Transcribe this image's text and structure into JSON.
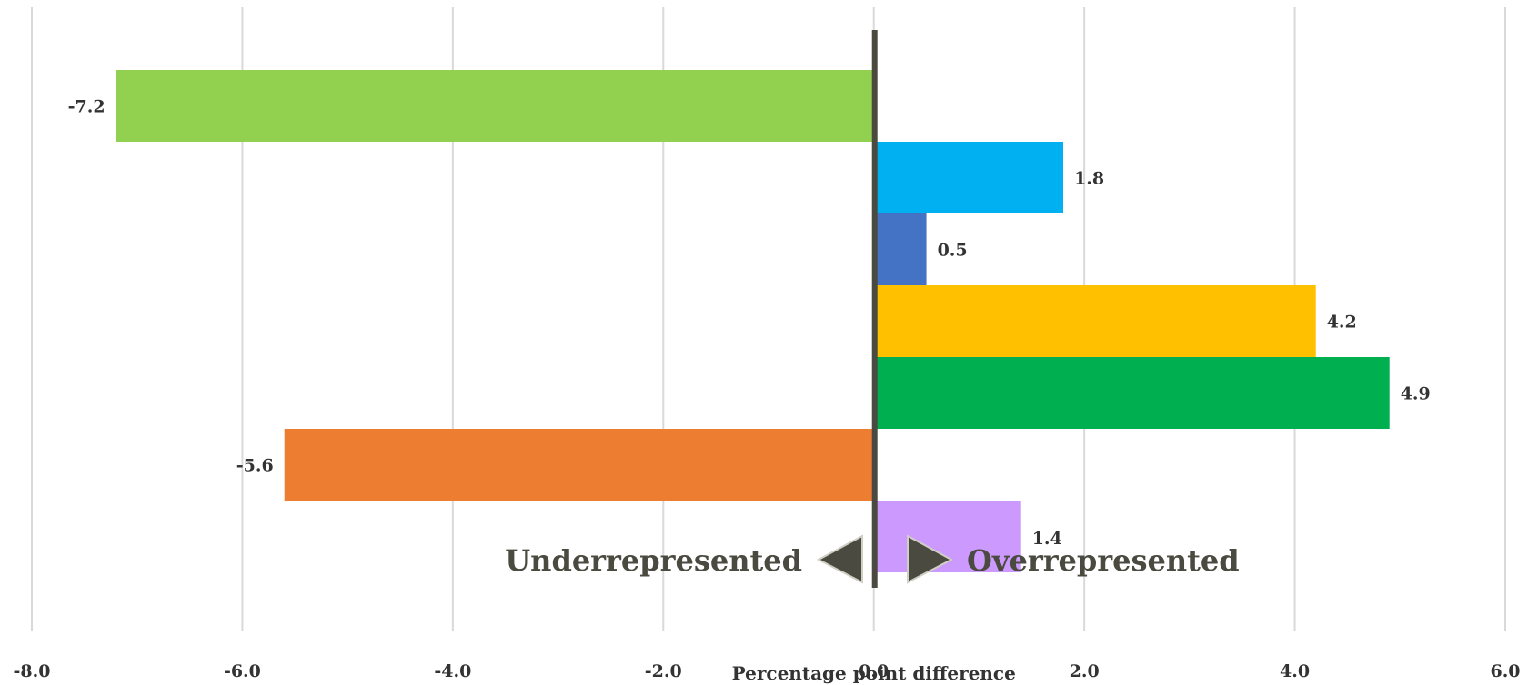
{
  "chart_data": {
    "type": "bar",
    "orientation": "horizontal",
    "values": [
      -7.2,
      1.8,
      0.5,
      4.2,
      4.9,
      -5.6,
      1.4
    ],
    "colors": [
      "#92d050",
      "#00b0f0",
      "#4472c4",
      "#ffc000",
      "#00b050",
      "#ed7d31",
      "#cc99ff"
    ],
    "data_labels": [
      "-7.2",
      "1.8",
      "0.5",
      "4.2",
      "4.9",
      "-5.6",
      "1.4"
    ],
    "xlim": [
      -8,
      6
    ],
    "x_ticks": [
      -8,
      -6,
      -4,
      -2,
      0,
      2,
      4,
      6
    ],
    "x_tick_labels": [
      "-8.0",
      "-6.0",
      "-4.0",
      "-2.0",
      "0.0",
      "2.0",
      "4.0",
      "6.0"
    ],
    "xlabel": "Percentage point difference",
    "grid": "vertical",
    "annotations": {
      "left": "Underrepresented",
      "right": "Overrepresented"
    },
    "annotation_color": "#4a4a40",
    "zero_line_color": "#4a4a40"
  }
}
